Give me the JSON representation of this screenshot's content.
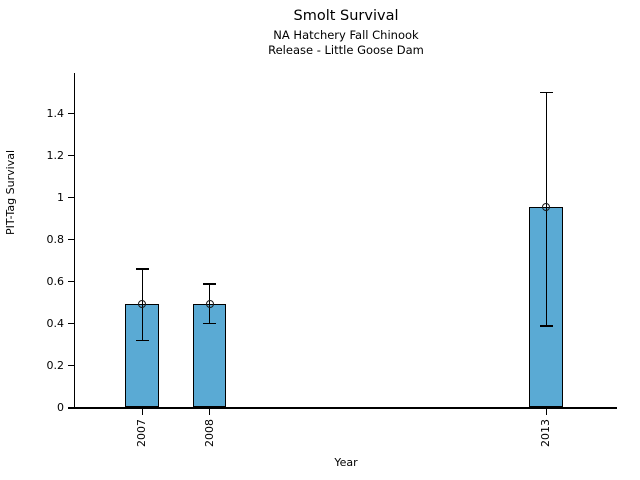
{
  "chart_data": {
    "type": "bar",
    "title": "Smolt Survival",
    "subtitle1": "NA Hatchery Fall Chinook",
    "subtitle2": "Release - Little Goose Dam",
    "xlabel": "Year",
    "ylabel": "PIT-Tag Survival",
    "categories": [
      "2007",
      "2008",
      "2013"
    ],
    "x_years": [
      2007,
      2008,
      2013
    ],
    "values": [
      0.49,
      0.49,
      0.95
    ],
    "error_upper": [
      0.66,
      0.59,
      1.5
    ],
    "error_lower": [
      0.32,
      0.4,
      0.39
    ],
    "yticks": [
      0,
      0.2,
      0.4,
      0.6,
      0.8,
      1,
      1.2,
      1.4
    ],
    "ytick_labels": [
      "0",
      "0.2",
      "0.4",
      "0.6",
      "0.8",
      "1",
      "1.2",
      "1.4"
    ],
    "ylim": [
      0,
      1.59
    ],
    "xlim": [
      2006.0,
      2014.05
    ],
    "bar_width_years": 0.5,
    "bar_color": "#5aaad4",
    "line_color": "#000000",
    "marker": "open-circle",
    "grid": false,
    "legend": false
  }
}
